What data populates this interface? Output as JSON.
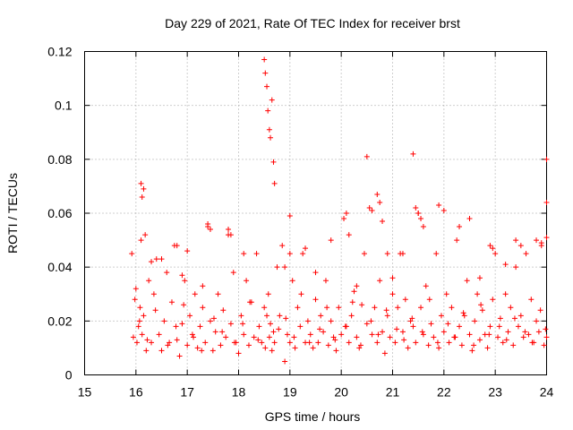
{
  "chart_data": {
    "type": "scatter",
    "title": "Day 229 of 2021, Rate Of TEC Index for receiver brst",
    "xlabel": "GPS time / hours",
    "ylabel": "ROTI / TECUs",
    "xlim": [
      15,
      24
    ],
    "ylim": [
      0,
      0.12
    ],
    "xticks": [
      "15",
      "16",
      "17",
      "18",
      "19",
      "20",
      "21",
      "22",
      "23",
      "24"
    ],
    "yticks": [
      "0",
      "0.02",
      "0.04",
      "0.06",
      "0.08",
      "0.1",
      "0.12"
    ],
    "grid": true,
    "legend": "none",
    "marker": "plus",
    "color": "#ff0000",
    "series": [
      {
        "x": [
          15.92,
          15.95,
          15.98,
          16.0,
          16.02,
          16.05,
          16.08,
          16.1,
          16.12,
          16.15,
          16.18,
          16.2,
          16.25,
          16.3,
          16.35,
          16.4,
          16.45,
          16.5,
          16.55,
          16.6,
          16.65,
          16.7,
          16.75,
          16.8,
          16.85,
          16.9,
          16.95,
          17.0,
          17.05,
          17.1,
          17.15,
          17.2,
          17.25,
          17.3,
          17.35,
          17.4,
          17.45,
          17.5,
          17.55,
          17.6,
          17.65,
          17.7,
          17.75,
          17.8,
          17.85,
          17.9,
          17.95,
          18.0,
          18.05,
          18.1,
          18.15,
          18.2,
          18.25,
          18.3,
          18.35,
          18.4,
          18.45,
          18.5,
          18.52,
          18.55,
          18.58,
          18.6,
          18.62,
          18.65,
          18.68,
          18.7,
          18.75,
          18.8,
          18.85,
          18.9,
          18.95,
          19.0,
          19.05,
          19.1,
          19.15,
          19.2,
          19.25,
          19.3,
          19.35,
          19.4,
          19.45,
          19.5,
          19.55,
          19.6,
          19.65,
          19.7,
          19.75,
          19.8,
          19.85,
          19.9,
          19.95,
          20.0,
          20.05,
          20.1,
          20.15,
          20.2,
          20.25,
          20.3,
          20.35,
          20.4,
          20.45,
          20.5,
          20.55,
          20.6,
          20.65,
          20.7,
          20.75,
          20.8,
          20.85,
          20.9,
          20.95,
          21.0,
          21.05,
          21.1,
          21.15,
          21.2,
          21.25,
          21.3,
          21.35,
          21.4,
          21.45,
          21.5,
          21.55,
          21.6,
          21.65,
          21.7,
          21.75,
          21.8,
          21.85,
          21.9,
          21.95,
          22.0,
          22.05,
          22.1,
          22.15,
          22.2,
          22.25,
          22.3,
          22.35,
          22.4,
          22.45,
          22.5,
          22.55,
          22.6,
          22.65,
          22.7,
          22.75,
          22.8,
          22.85,
          22.9,
          22.95,
          23.0,
          23.05,
          23.1,
          23.15,
          23.2,
          23.25,
          23.3,
          23.35,
          23.4,
          23.45,
          23.5,
          23.55,
          23.6,
          23.65,
          23.7,
          23.75,
          23.8,
          23.85,
          23.9,
          23.95,
          24.0,
          16.1,
          16.12,
          16.15,
          16.5,
          16.8,
          17.0,
          17.4,
          17.45,
          17.8,
          17.85,
          18.1,
          18.5,
          18.52,
          18.55,
          18.57,
          18.6,
          18.62,
          18.65,
          18.68,
          18.7,
          19.0,
          19.3,
          19.8,
          20.1,
          20.15,
          20.5,
          20.6,
          20.7,
          20.75,
          20.8,
          21.2,
          21.4,
          21.45,
          21.5,
          21.55,
          21.6,
          21.9,
          22.0,
          22.3,
          22.5,
          22.9,
          22.95,
          23.4,
          23.5,
          23.8,
          23.9,
          24.0,
          24.0,
          24.0,
          19.0,
          19.5,
          20.9,
          21.0,
          18.9,
          17.3,
          16.3,
          16.9,
          22.7,
          23.2,
          20.3,
          16.07,
          16.22,
          16.38,
          16.62,
          16.78,
          16.93,
          17.12,
          17.28,
          17.52,
          17.68,
          17.92,
          18.08,
          18.22,
          18.38,
          18.78,
          18.92,
          19.08,
          19.22,
          19.38,
          19.58,
          19.72,
          19.88,
          20.08,
          20.22,
          20.38,
          20.58,
          20.72,
          20.88,
          21.08,
          21.22,
          21.38,
          21.58,
          21.72,
          21.88,
          22.08,
          22.22,
          22.38,
          22.58,
          22.72,
          22.88,
          23.08,
          23.22,
          23.38,
          23.58,
          23.72,
          23.88,
          23.98
        ],
        "y": [
          0.045,
          0.014,
          0.028,
          0.032,
          0.012,
          0.018,
          0.025,
          0.05,
          0.015,
          0.022,
          0.052,
          0.009,
          0.035,
          0.012,
          0.03,
          0.043,
          0.015,
          0.009,
          0.02,
          0.038,
          0.012,
          0.027,
          0.048,
          0.013,
          0.007,
          0.019,
          0.035,
          0.011,
          0.022,
          0.015,
          0.03,
          0.01,
          0.018,
          0.025,
          0.012,
          0.055,
          0.02,
          0.009,
          0.016,
          0.03,
          0.011,
          0.024,
          0.014,
          0.052,
          0.019,
          0.038,
          0.012,
          0.008,
          0.022,
          0.015,
          0.035,
          0.011,
          0.027,
          0.014,
          0.045,
          0.018,
          0.012,
          0.025,
          0.01,
          0.022,
          0.03,
          0.014,
          0.019,
          0.009,
          0.016,
          0.012,
          0.04,
          0.022,
          0.048,
          0.005,
          0.015,
          0.012,
          0.035,
          0.01,
          0.025,
          0.018,
          0.045,
          0.012,
          0.02,
          0.015,
          0.01,
          0.028,
          0.012,
          0.022,
          0.016,
          0.035,
          0.011,
          0.02,
          0.014,
          0.009,
          0.025,
          0.015,
          0.058,
          0.018,
          0.012,
          0.022,
          0.031,
          0.014,
          0.01,
          0.026,
          0.045,
          0.019,
          0.062,
          0.015,
          0.025,
          0.012,
          0.035,
          0.016,
          0.008,
          0.022,
          0.014,
          0.03,
          0.012,
          0.025,
          0.045,
          0.016,
          0.028,
          0.01,
          0.02,
          0.018,
          0.012,
          0.06,
          0.025,
          0.015,
          0.033,
          0.011,
          0.019,
          0.014,
          0.045,
          0.01,
          0.022,
          0.016,
          0.03,
          0.012,
          0.025,
          0.014,
          0.05,
          0.018,
          0.011,
          0.022,
          0.035,
          0.015,
          0.009,
          0.02,
          0.03,
          0.013,
          0.024,
          0.015,
          0.01,
          0.018,
          0.028,
          0.045,
          0.014,
          0.021,
          0.012,
          0.03,
          0.016,
          0.025,
          0.011,
          0.04,
          0.018,
          0.022,
          0.014,
          0.045,
          0.015,
          0.028,
          0.012,
          0.02,
          0.016,
          0.048,
          0.011,
          0.014,
          0.071,
          0.066,
          0.069,
          0.043,
          0.048,
          0.046,
          0.056,
          0.054,
          0.054,
          0.052,
          0.045,
          0.117,
          0.112,
          0.107,
          0.098,
          0.091,
          0.088,
          0.102,
          0.079,
          0.071,
          0.059,
          0.047,
          0.05,
          0.06,
          0.052,
          0.081,
          0.061,
          0.067,
          0.064,
          0.057,
          0.045,
          0.082,
          0.062,
          0.06,
          0.058,
          0.055,
          0.063,
          0.061,
          0.055,
          0.058,
          0.048,
          0.047,
          0.05,
          0.048,
          0.05,
          0.049,
          0.08,
          0.064,
          0.051,
          0.045,
          0.038,
          0.045,
          0.036,
          0.04,
          0.033,
          0.042,
          0.037,
          0.036,
          0.041,
          0.033,
          0.02,
          0.013,
          0.024,
          0.011,
          0.018,
          0.026,
          0.014,
          0.009,
          0.021,
          0.016,
          0.012,
          0.019,
          0.027,
          0.013,
          0.017,
          0.021,
          0.014,
          0.03,
          0.012,
          0.017,
          0.025,
          0.013,
          0.018,
          0.027,
          0.011,
          0.02,
          0.015,
          0.024,
          0.017,
          0.013,
          0.021,
          0.016,
          0.028,
          0.012,
          0.019,
          0.014,
          0.023,
          0.011,
          0.026,
          0.015,
          0.018,
          0.013,
          0.021,
          0.016,
          0.012,
          0.024,
          0.017
        ]
      }
    ]
  }
}
